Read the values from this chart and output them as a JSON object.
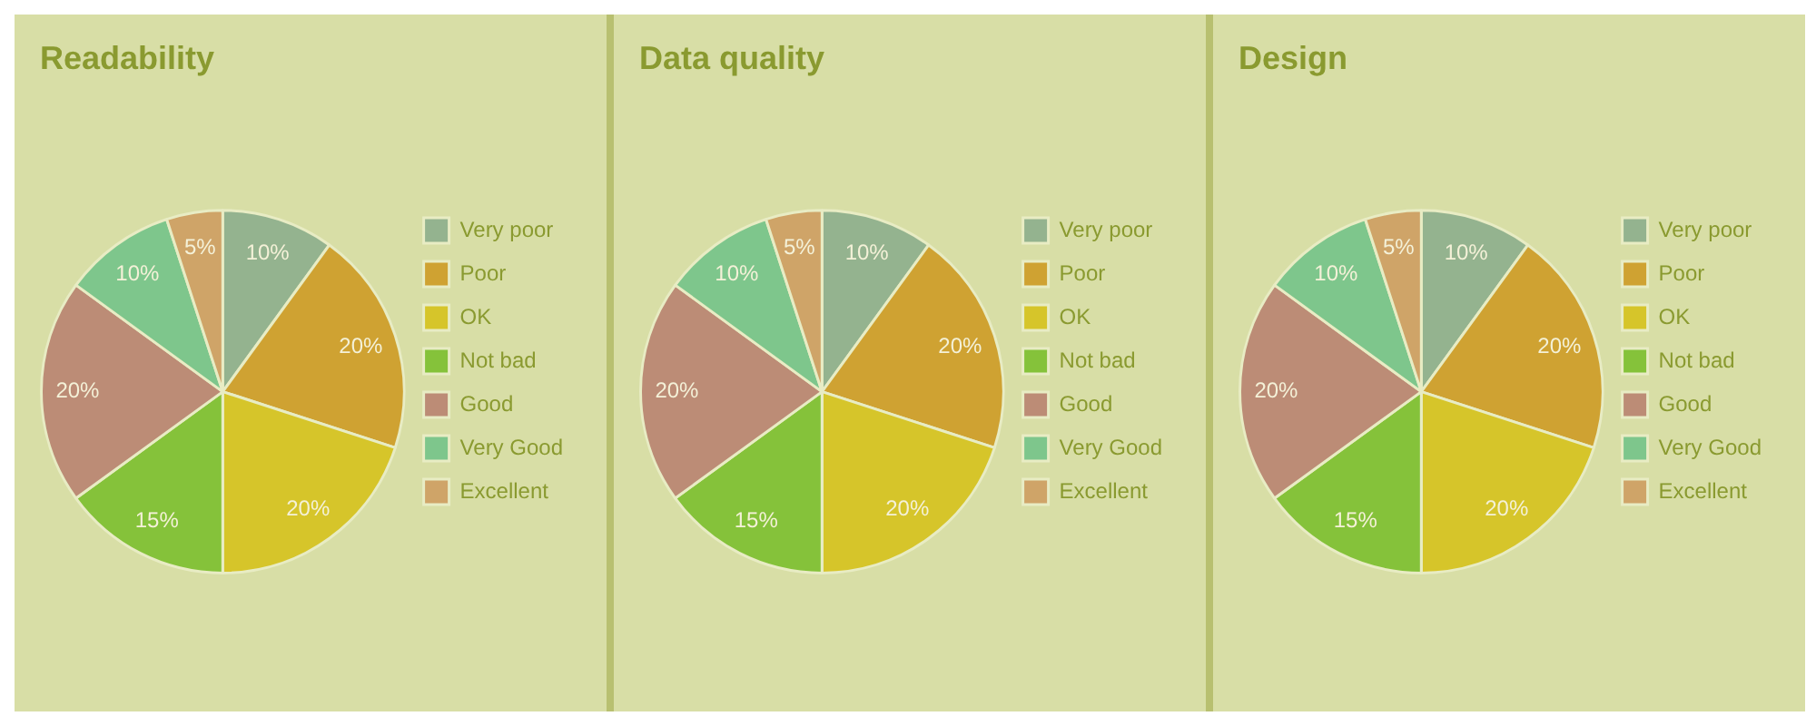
{
  "chart_data": [
    {
      "type": "pie",
      "title": "Readability",
      "categories": [
        "Very poor",
        "Poor",
        "OK",
        "Not bad",
        "Good",
        "Very Good",
        "Excellent"
      ],
      "values": [
        10,
        20,
        20,
        15,
        20,
        10,
        5
      ],
      "value_labels": [
        "10%",
        "20%",
        "20%",
        "15%",
        "20%",
        "10%",
        "5%"
      ],
      "colors": [
        "#94b38f",
        "#cfa232",
        "#d6c52a",
        "#85c23a",
        "#bc8c76",
        "#7ec68c",
        "#cfa468"
      ],
      "legend": "right"
    },
    {
      "type": "pie",
      "title": "Data quality",
      "categories": [
        "Very poor",
        "Poor",
        "OK",
        "Not bad",
        "Good",
        "Very Good",
        "Excellent"
      ],
      "values": [
        10,
        20,
        20,
        15,
        20,
        10,
        5
      ],
      "value_labels": [
        "10%",
        "20%",
        "20%",
        "15%",
        "20%",
        "10%",
        "5%"
      ],
      "colors": [
        "#94b38f",
        "#cfa232",
        "#d6c52a",
        "#85c23a",
        "#bc8c76",
        "#7ec68c",
        "#cfa468"
      ],
      "legend": "right"
    },
    {
      "type": "pie",
      "title": "Design",
      "categories": [
        "Very poor",
        "Poor",
        "OK",
        "Not bad",
        "Good",
        "Very Good",
        "Excellent"
      ],
      "values": [
        10,
        20,
        20,
        15,
        20,
        10,
        5
      ],
      "value_labels": [
        "10%",
        "20%",
        "20%",
        "15%",
        "20%",
        "10%",
        "5%"
      ],
      "colors": [
        "#94b38f",
        "#cfa232",
        "#d6c52a",
        "#85c23a",
        "#bc8c76",
        "#7ec68c",
        "#cfa468"
      ],
      "legend": "right"
    }
  ]
}
